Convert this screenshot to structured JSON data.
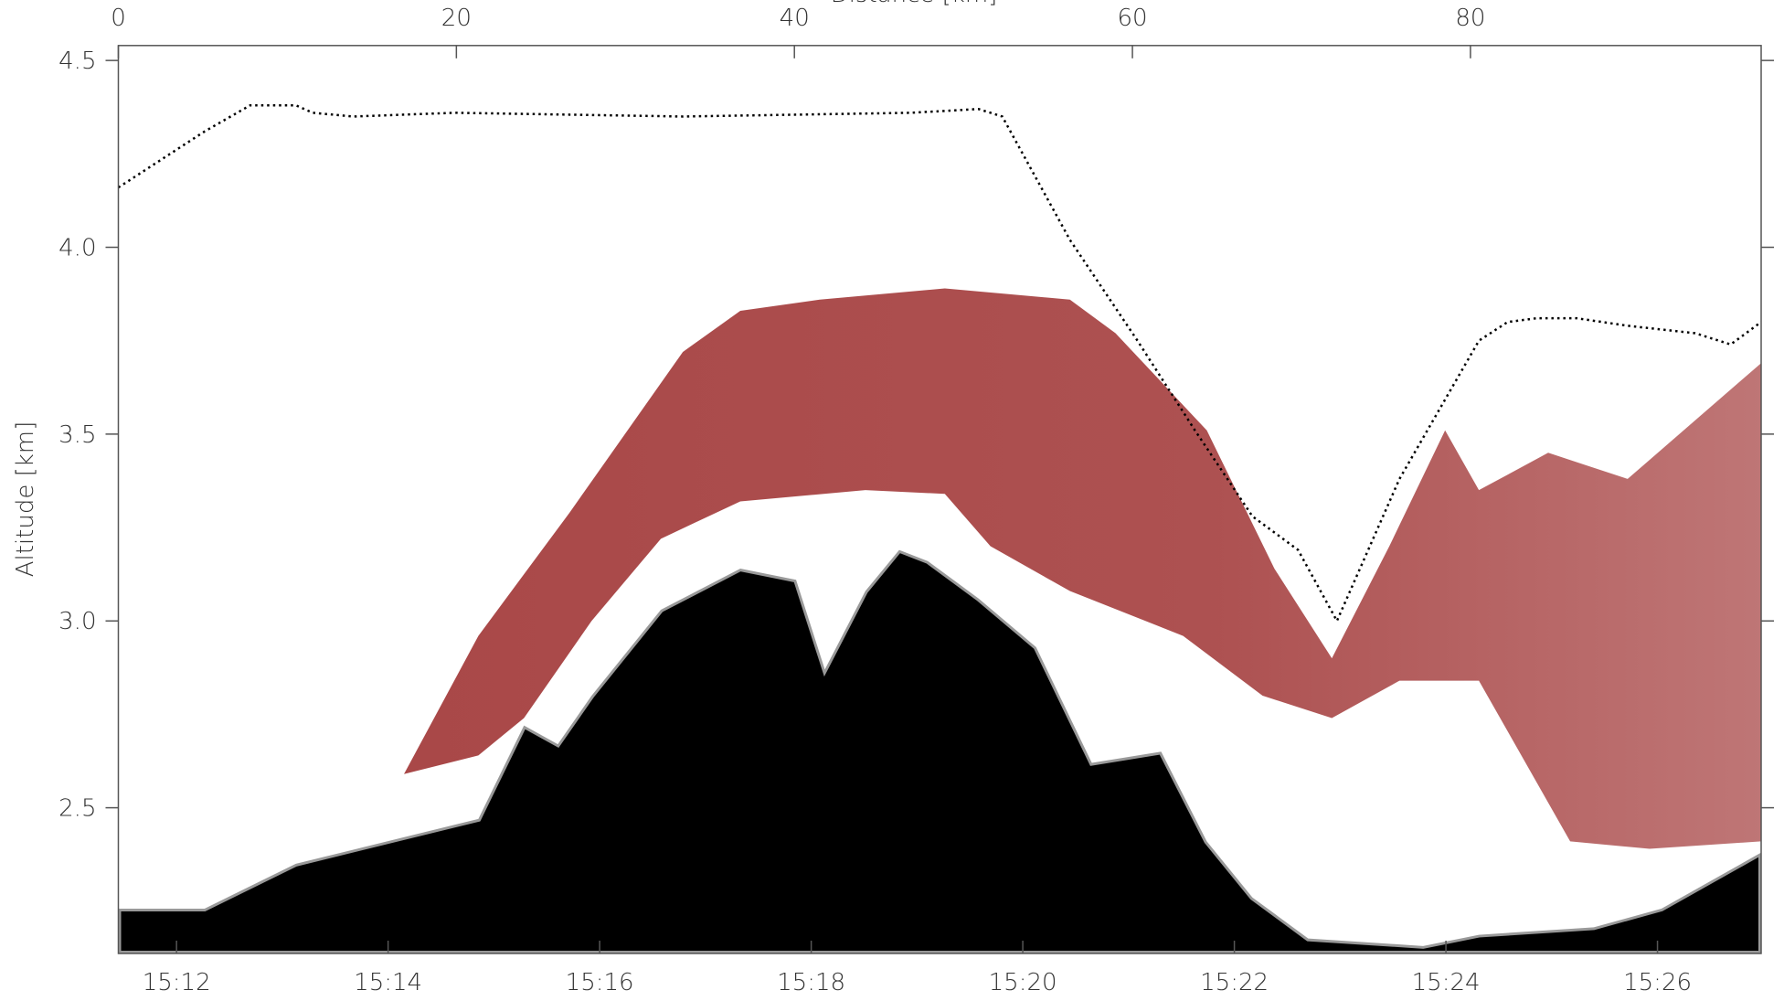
{
  "chart_data": {
    "type": "line",
    "xlabel": "Distance [km]",
    "ylabel": "Altitude [km]",
    "xlim": [
      0,
      97.2
    ],
    "xticks": [
      0,
      20,
      40,
      60,
      80
    ],
    "x2lim": [
      11.45,
      26.98
    ],
    "x2ticks": [
      {
        "value": 12,
        "label": "15:12"
      },
      {
        "value": 14,
        "label": "15:14"
      },
      {
        "value": 16,
        "label": "15:16"
      },
      {
        "value": 18,
        "label": "15:18"
      },
      {
        "value": 20,
        "label": "15:20"
      },
      {
        "value": 22,
        "label": "15:22"
      },
      {
        "value": 24,
        "label": "15:24"
      },
      {
        "value": 26,
        "label": "15:26"
      }
    ],
    "ylim": [
      2.11,
      4.54
    ],
    "yticks": [
      2.5,
      {
        "value": 3,
        "label": "3.0"
      },
      3.5,
      {
        "value": 4,
        "label": "4.0"
      },
      4.5
    ],
    "series": [
      {
        "style": "band-top",
        "color": "#a94848",
        "x": [
          16.9,
          21.3,
          26.7,
          33.4,
          36.8,
          41.5,
          48.9,
          56.3,
          59.0,
          64.4,
          68.4,
          71.8,
          75.2,
          78.5,
          80.5,
          84.6,
          89.3,
          97.2
        ],
        "values": [
          2.59,
          2.96,
          3.29,
          3.72,
          3.83,
          3.86,
          3.89,
          3.86,
          3.77,
          3.51,
          3.14,
          2.9,
          3.2,
          3.51,
          3.35,
          3.45,
          3.38,
          3.69
        ]
      },
      {
        "style": "band-base",
        "color": "#a94848",
        "x": [
          16.9,
          21.3,
          24.0,
          28.0,
          32.1,
          36.8,
          44.2,
          48.9,
          51.6,
          56.3,
          63.0,
          67.7,
          71.8,
          75.8,
          80.5,
          85.9,
          90.6,
          97.2
        ],
        "values": [
          2.59,
          2.64,
          2.74,
          3.0,
          3.22,
          3.32,
          3.35,
          3.34,
          3.2,
          3.08,
          2.96,
          2.8,
          2.74,
          2.84,
          2.84,
          2.41,
          2.39,
          2.41
        ]
      },
      {
        "style": "ground",
        "color": "#000000",
        "x": [
          0,
          5.1,
          10.5,
          15.9,
          21.3,
          24.0,
          26.0,
          28.0,
          32.1,
          36.8,
          40.1,
          41.8,
          44.2,
          46.2,
          47.9,
          50.9,
          54.3,
          57.6,
          61.7,
          64.4,
          67.1,
          70.4,
          77.2,
          80.5,
          87.3,
          91.3,
          97.2
        ],
        "values": [
          2.23,
          2.23,
          2.35,
          2.41,
          2.47,
          2.72,
          2.67,
          2.8,
          3.03,
          3.14,
          3.11,
          2.87,
          3.08,
          3.19,
          3.16,
          3.06,
          2.93,
          2.62,
          2.65,
          2.41,
          2.26,
          2.15,
          2.13,
          2.16,
          2.18,
          2.23,
          2.38
        ]
      },
      {
        "style": "dotted",
        "color": "#000000",
        "x": [
          0,
          5.1,
          7.8,
          10.5,
          11.5,
          13.9,
          19.9,
          33.4,
          46.9,
          50.9,
          52.3,
          56.3,
          60.3,
          63.7,
          67.1,
          69.8,
          72.1,
          75.8,
          80.5,
          82.2,
          83.9,
          86.3,
          89.3,
          93.3,
          95.4,
          97.2
        ],
        "values": [
          4.16,
          4.31,
          4.38,
          4.38,
          4.36,
          4.35,
          4.36,
          4.35,
          4.36,
          4.37,
          4.35,
          4.02,
          3.75,
          3.51,
          3.28,
          3.19,
          3.0,
          3.38,
          3.75,
          3.8,
          3.81,
          3.81,
          3.79,
          3.77,
          3.74,
          3.8
        ]
      }
    ]
  }
}
